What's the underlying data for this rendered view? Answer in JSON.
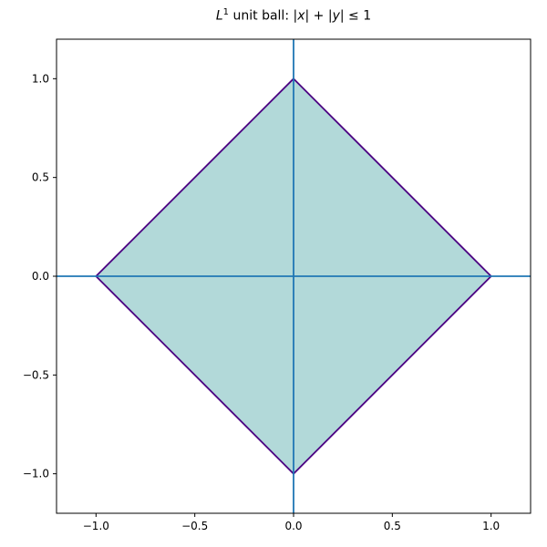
{
  "figure": {
    "background": "#ffffff",
    "title_segments": {
      "l_symbol": "L",
      "exponent": "1",
      "text_mid": " unit ball: ",
      "abs_open": "|",
      "var_x": "x",
      "abs_mid": "| + |",
      "var_y": "y",
      "abs_close": "| ≤ 1"
    }
  },
  "chart_data": {
    "type": "area",
    "title": "L^1 unit ball: |x| + |y| ≤ 1",
    "xlabel": "",
    "ylabel": "",
    "xlim": [
      -1.2,
      1.2
    ],
    "ylim": [
      -1.2,
      1.2
    ],
    "xticks": [
      -1.0,
      -0.5,
      0.0,
      0.5,
      1.0
    ],
    "yticks": [
      -1.0,
      -0.5,
      0.0,
      0.5,
      1.0
    ],
    "xtick_labels": [
      "−1.0",
      "−0.5",
      "0.0",
      "0.5",
      "1.0"
    ],
    "ytick_labels": [
      "−1.0",
      "−0.5",
      "0.0",
      "0.5",
      "1.0"
    ],
    "grid": false,
    "legend": null,
    "polygon": {
      "name": "l1-unit-ball",
      "vertices": [
        [
          0,
          1
        ],
        [
          1,
          0
        ],
        [
          0,
          -1
        ],
        [
          -1,
          0
        ]
      ],
      "fill_color": "#008080",
      "fill_opacity": 0.3,
      "edge_color": "#4b0082",
      "edge_width": 1.8
    },
    "axis_lines": {
      "vertical_x": 0,
      "horizontal_y": 0,
      "color": "#1f77b4",
      "width": 1.8
    },
    "style": {
      "spine_color": "#000000",
      "spine_width": 1,
      "tick_color": "#000000",
      "tick_length": 4,
      "tick_label_color": "#000000"
    }
  }
}
